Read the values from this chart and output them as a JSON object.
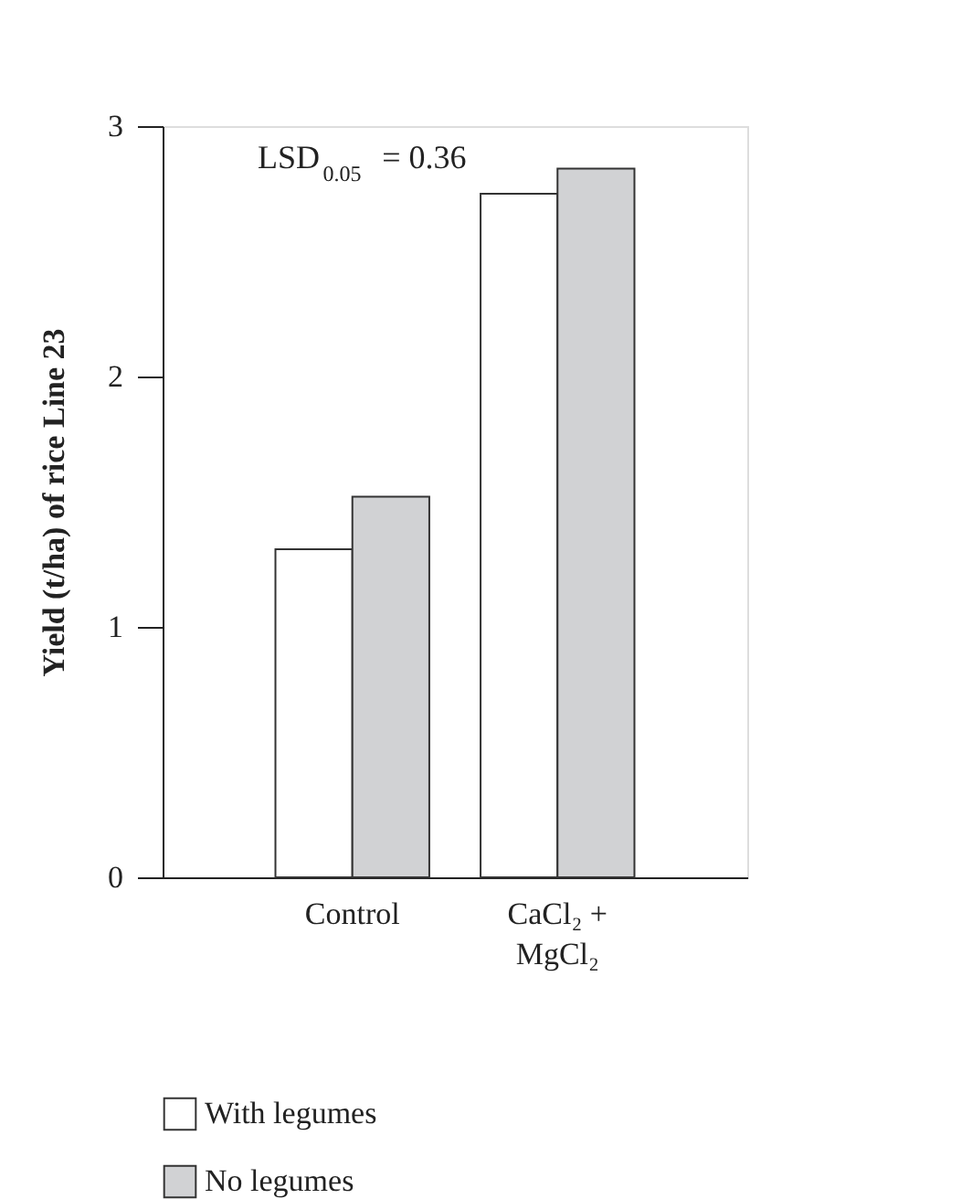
{
  "chart_data": {
    "type": "bar",
    "categories": [
      "Control",
      "CaCl₂ +\nMgCl₂"
    ],
    "ylabel": "Yield (t/ha) of rice Line 23",
    "series": [
      {
        "name": "With legumes",
        "color": "#ffffff",
        "values": [
          1.31,
          2.73
        ]
      },
      {
        "name": "No legumes",
        "color": "#d1d2d4",
        "values": [
          1.52,
          2.83
        ]
      }
    ],
    "ylim": [
      0,
      3
    ],
    "yticks": [
      0,
      1,
      2,
      3
    ],
    "grid": false,
    "legend": "bottom",
    "annotations": [
      {
        "text": "LSD$_{0.05}$ = 0.36"
      }
    ]
  }
}
